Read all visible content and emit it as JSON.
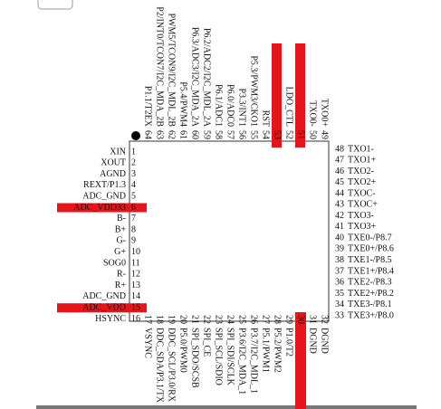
{
  "left": [
    {
      "number": "1",
      "label": "XIN"
    },
    {
      "number": "2",
      "label": "XOUT"
    },
    {
      "number": "3",
      "label": "AGND"
    },
    {
      "number": "4",
      "label": "REXT/P1.3"
    },
    {
      "number": "5",
      "label": "ADC_GND"
    },
    {
      "number": "6",
      "label": "ADC_VDD33",
      "highlighted": true
    },
    {
      "number": "7",
      "label": "B-"
    },
    {
      "number": "8",
      "label": "B+"
    },
    {
      "number": "9",
      "label": "G-"
    },
    {
      "number": "10",
      "label": "G+"
    },
    {
      "number": "11",
      "label": "SOG0"
    },
    {
      "number": "12",
      "label": "R-"
    },
    {
      "number": "13",
      "label": "R+"
    },
    {
      "number": "14",
      "label": "ADC_GND"
    },
    {
      "number": "15",
      "label": "ADC_VDD",
      "highlighted": true
    },
    {
      "number": "16",
      "label": "HSYNC"
    }
  ],
  "right": [
    {
      "number": "48",
      "label": "TXO1-"
    },
    {
      "number": "47",
      "label": "TXO1+"
    },
    {
      "number": "46",
      "label": "TXO2-"
    },
    {
      "number": "45",
      "label": "TXO2+"
    },
    {
      "number": "44",
      "label": "TXOC-"
    },
    {
      "number": "43",
      "label": "TXOC+"
    },
    {
      "number": "42",
      "label": "TXO3-"
    },
    {
      "number": "41",
      "label": "TXO3+"
    },
    {
      "number": "40",
      "label": "TXE0-/P8.7"
    },
    {
      "number": "39",
      "label": "TXE0+/P8.6"
    },
    {
      "number": "38",
      "label": "TXE1-/P8.5"
    },
    {
      "number": "37",
      "label": "TXE1+/P8.4"
    },
    {
      "number": "36",
      "label": "TXE2-/P8.3"
    },
    {
      "number": "35",
      "label": "TXE2+/P8.2"
    },
    {
      "number": "34",
      "label": "TXE3-/P8.1"
    },
    {
      "number": "33",
      "label": "TXE3+/P8.0"
    }
  ],
  "top": [
    {
      "number": "64",
      "label": "P1.1/T2EX"
    },
    {
      "number": "63",
      "label": "P2/INT0/TCON7/I2C_MDA_2B"
    },
    {
      "number": "62",
      "label": "PWM5/TCON9/I2C_MDL_2B"
    },
    {
      "number": "61",
      "label": "P5.4/PWM4"
    },
    {
      "number": "60",
      "label": "P6.3/ADC3/I2C_MDA_2A"
    },
    {
      "number": "59",
      "label": "P6.2/ADC2/I2C_MDL_2A"
    },
    {
      "number": "58",
      "label": "P6.1/ADC1"
    },
    {
      "number": "57",
      "label": "P6.0/ADC0"
    },
    {
      "number": "56",
      "label": "P3.3/INT1"
    },
    {
      "number": "55",
      "label": "P5.3/PWM3/CKO1"
    },
    {
      "number": "54",
      "label": "RST"
    },
    {
      "number": "53",
      "highlighted": true
    },
    {
      "number": "52",
      "label": "LDO_CTL"
    },
    {
      "number": "51",
      "highlighted": true
    },
    {
      "number": "50",
      "label": "TXO0-"
    },
    {
      "number": "49",
      "label": "TXO0+"
    }
  ],
  "bottom": [
    {
      "number": "17",
      "label": "VSYNC"
    },
    {
      "number": "18",
      "label": "DDC_SDA/P3.1/TX"
    },
    {
      "number": "19",
      "label": "DDC_SCL/P3.0/RX"
    },
    {
      "number": "20",
      "label": "P5.0/PWM0"
    },
    {
      "number": "21",
      "label": "SPI_SDO/SCSB"
    },
    {
      "number": "22",
      "label": "SPI_CE"
    },
    {
      "number": "23",
      "label": "SPI_SCL/SDIO"
    },
    {
      "number": "24",
      "label": "SPI_SDI/SCLK"
    },
    {
      "number": "25",
      "label": "P3.6/I2C_MDA_1"
    },
    {
      "number": "26",
      "label": "P3.7/I2C_MDL_1"
    },
    {
      "number": "27",
      "label": "P5.1/PWM1"
    },
    {
      "number": "28",
      "label": "P5.2/PWM2"
    },
    {
      "number": "29",
      "label": "P1.0/T2"
    },
    {
      "number": "30",
      "highlighted": true
    },
    {
      "number": "31",
      "label": "DGND"
    },
    {
      "number": "32",
      "label": "DGND"
    }
  ]
}
